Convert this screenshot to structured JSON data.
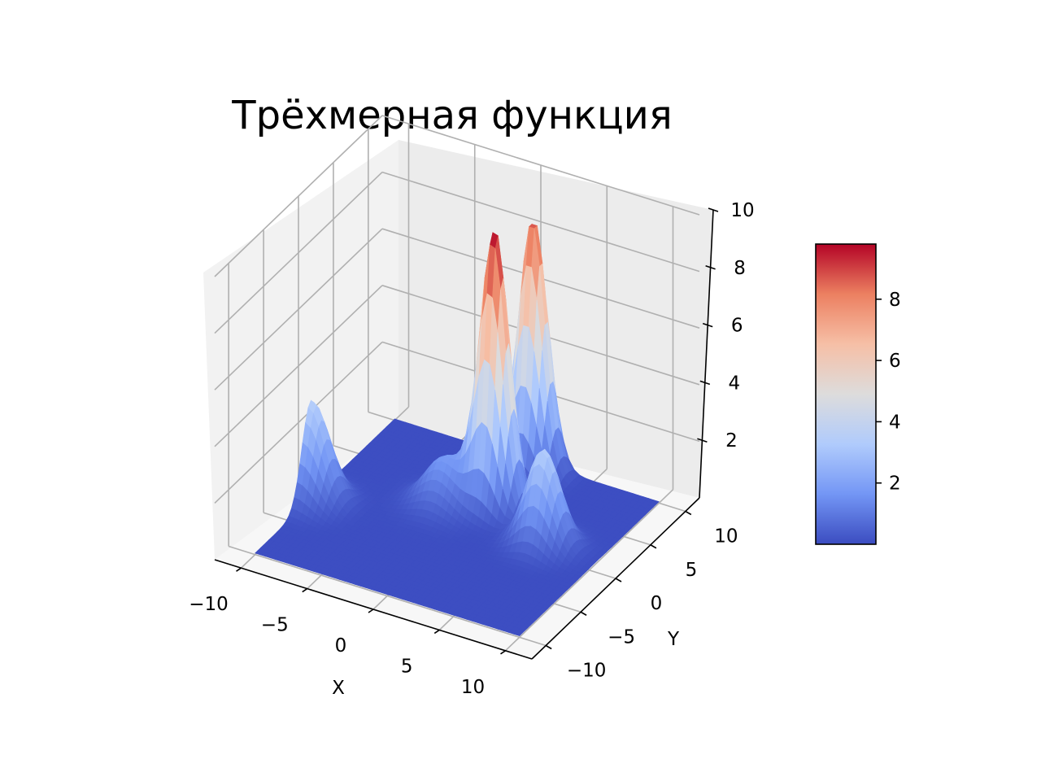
{
  "chart_data": {
    "type": "surface3d",
    "title": "Трёхмерная функция",
    "xlabel": "X",
    "ylabel": "Y",
    "zlabel": "",
    "xlim": [
      -12,
      12
    ],
    "ylim": [
      -12,
      12
    ],
    "zlim": [
      0,
      10
    ],
    "x_ticks": [
      -10,
      -5,
      0,
      5,
      10
    ],
    "y_ticks": [
      -10,
      -5,
      0,
      5,
      10
    ],
    "z_ticks": [
      2,
      4,
      6,
      8,
      10
    ],
    "x_tick_labels": [
      "−10",
      "−5",
      "0",
      "5",
      "10"
    ],
    "y_tick_labels": [
      "−10",
      "−5",
      "0",
      "5",
      "10"
    ],
    "z_tick_labels": [
      "2",
      "4",
      "6",
      "8",
      "10"
    ],
    "grid": true,
    "colormap": "coolwarm",
    "colormap_stops": [
      "#3b4cc0",
      "#7396f5",
      "#b0cbfc",
      "#dddcdc",
      "#f6bfa6",
      "#ec8061",
      "#b40426"
    ],
    "surface_peaks": [
      {
        "x": 1,
        "y": 3.5,
        "z": 9.8,
        "width": 1.0
      },
      {
        "x": 1,
        "y": 9,
        "z": 9.0,
        "width": 1.0
      },
      {
        "x": -10,
        "y": -2,
        "z": 3.5,
        "width": 1.3
      },
      {
        "x": -2,
        "y": 2,
        "z": 1.7,
        "width": 1.4
      },
      {
        "x": 6,
        "y": 1,
        "z": 3.4,
        "width": 1.2
      }
    ],
    "colorbar": {
      "range": [
        0,
        9.8
      ],
      "ticks": [
        2,
        4,
        6,
        8
      ],
      "tick_labels": [
        "2",
        "4",
        "6",
        "8"
      ]
    }
  }
}
